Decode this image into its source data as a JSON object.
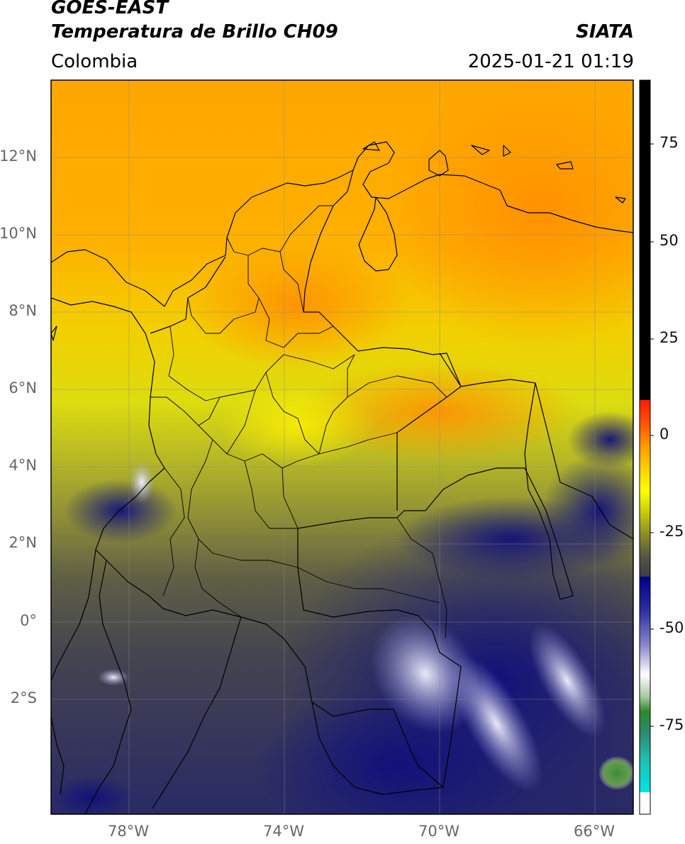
{
  "header": {
    "line1": "GOES-EAST",
    "line2": "Temperatura de Brillo CH09",
    "region": "Colombia",
    "agency": "SIATA",
    "datetime": "2025-01-21 01:19"
  },
  "map": {
    "lat_labels": [
      "12°N",
      "10°N",
      "8°N",
      "6°N",
      "4°N",
      "2°N",
      "0°",
      "2°S"
    ],
    "lon_labels": [
      "78°W",
      "74°W",
      "70°W",
      "66°W"
    ],
    "extent": {
      "lon_min": -80,
      "lon_max": -65,
      "lat_min": -4.9,
      "lat_max": 14.1
    }
  },
  "colorbar": {
    "ticks": [
      "75",
      "50",
      "25",
      "0",
      "-25",
      "-50",
      "-75"
    ],
    "tick_values": [
      75,
      50,
      25,
      0,
      -25,
      -50,
      -75
    ],
    "range": [
      -95,
      90
    ],
    "colors": {
      "warm_black": "#000000",
      "red": "#ff0000",
      "orange": "#ff8c00",
      "yellow": "#ffff00",
      "olive": "#9a9a2a",
      "gray": "#404040",
      "navy": "#000080",
      "white": "#ffffff",
      "green": "#228b22",
      "teal": "#20b2aa",
      "cyan": "#00e5e5"
    }
  }
}
